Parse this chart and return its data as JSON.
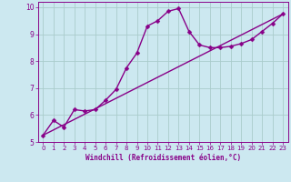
{
  "xlabel": "Windchill (Refroidissement éolien,°C)",
  "bg_color": "#cce8f0",
  "line_color": "#880088",
  "grid_color": "#aacccc",
  "xlim": [
    -0.5,
    23.5
  ],
  "ylim": [
    5,
    10.2
  ],
  "yticks": [
    5,
    6,
    7,
    8,
    9,
    10
  ],
  "xticks": [
    0,
    1,
    2,
    3,
    4,
    5,
    6,
    7,
    8,
    9,
    10,
    11,
    12,
    13,
    14,
    15,
    16,
    17,
    18,
    19,
    20,
    21,
    22,
    23
  ],
  "curve1_x": [
    0,
    1,
    2,
    3,
    4,
    5,
    6,
    7,
    8,
    9,
    10,
    11,
    12,
    13,
    14,
    15,
    16,
    17,
    18,
    19,
    20,
    21,
    22,
    23
  ],
  "curve1_y": [
    5.25,
    5.8,
    5.55,
    6.2,
    6.15,
    6.2,
    6.55,
    6.95,
    7.75,
    8.3,
    9.3,
    9.5,
    9.85,
    9.95,
    9.1,
    8.6,
    8.5,
    8.5,
    8.55,
    8.65,
    8.8,
    9.1,
    9.4,
    9.75
  ],
  "curve2_x": [
    0,
    23
  ],
  "curve2_y": [
    5.25,
    9.75
  ],
  "markersize": 2.5,
  "linewidth": 1.0,
  "tick_fontsize": 5,
  "xlabel_fontsize": 5.5
}
